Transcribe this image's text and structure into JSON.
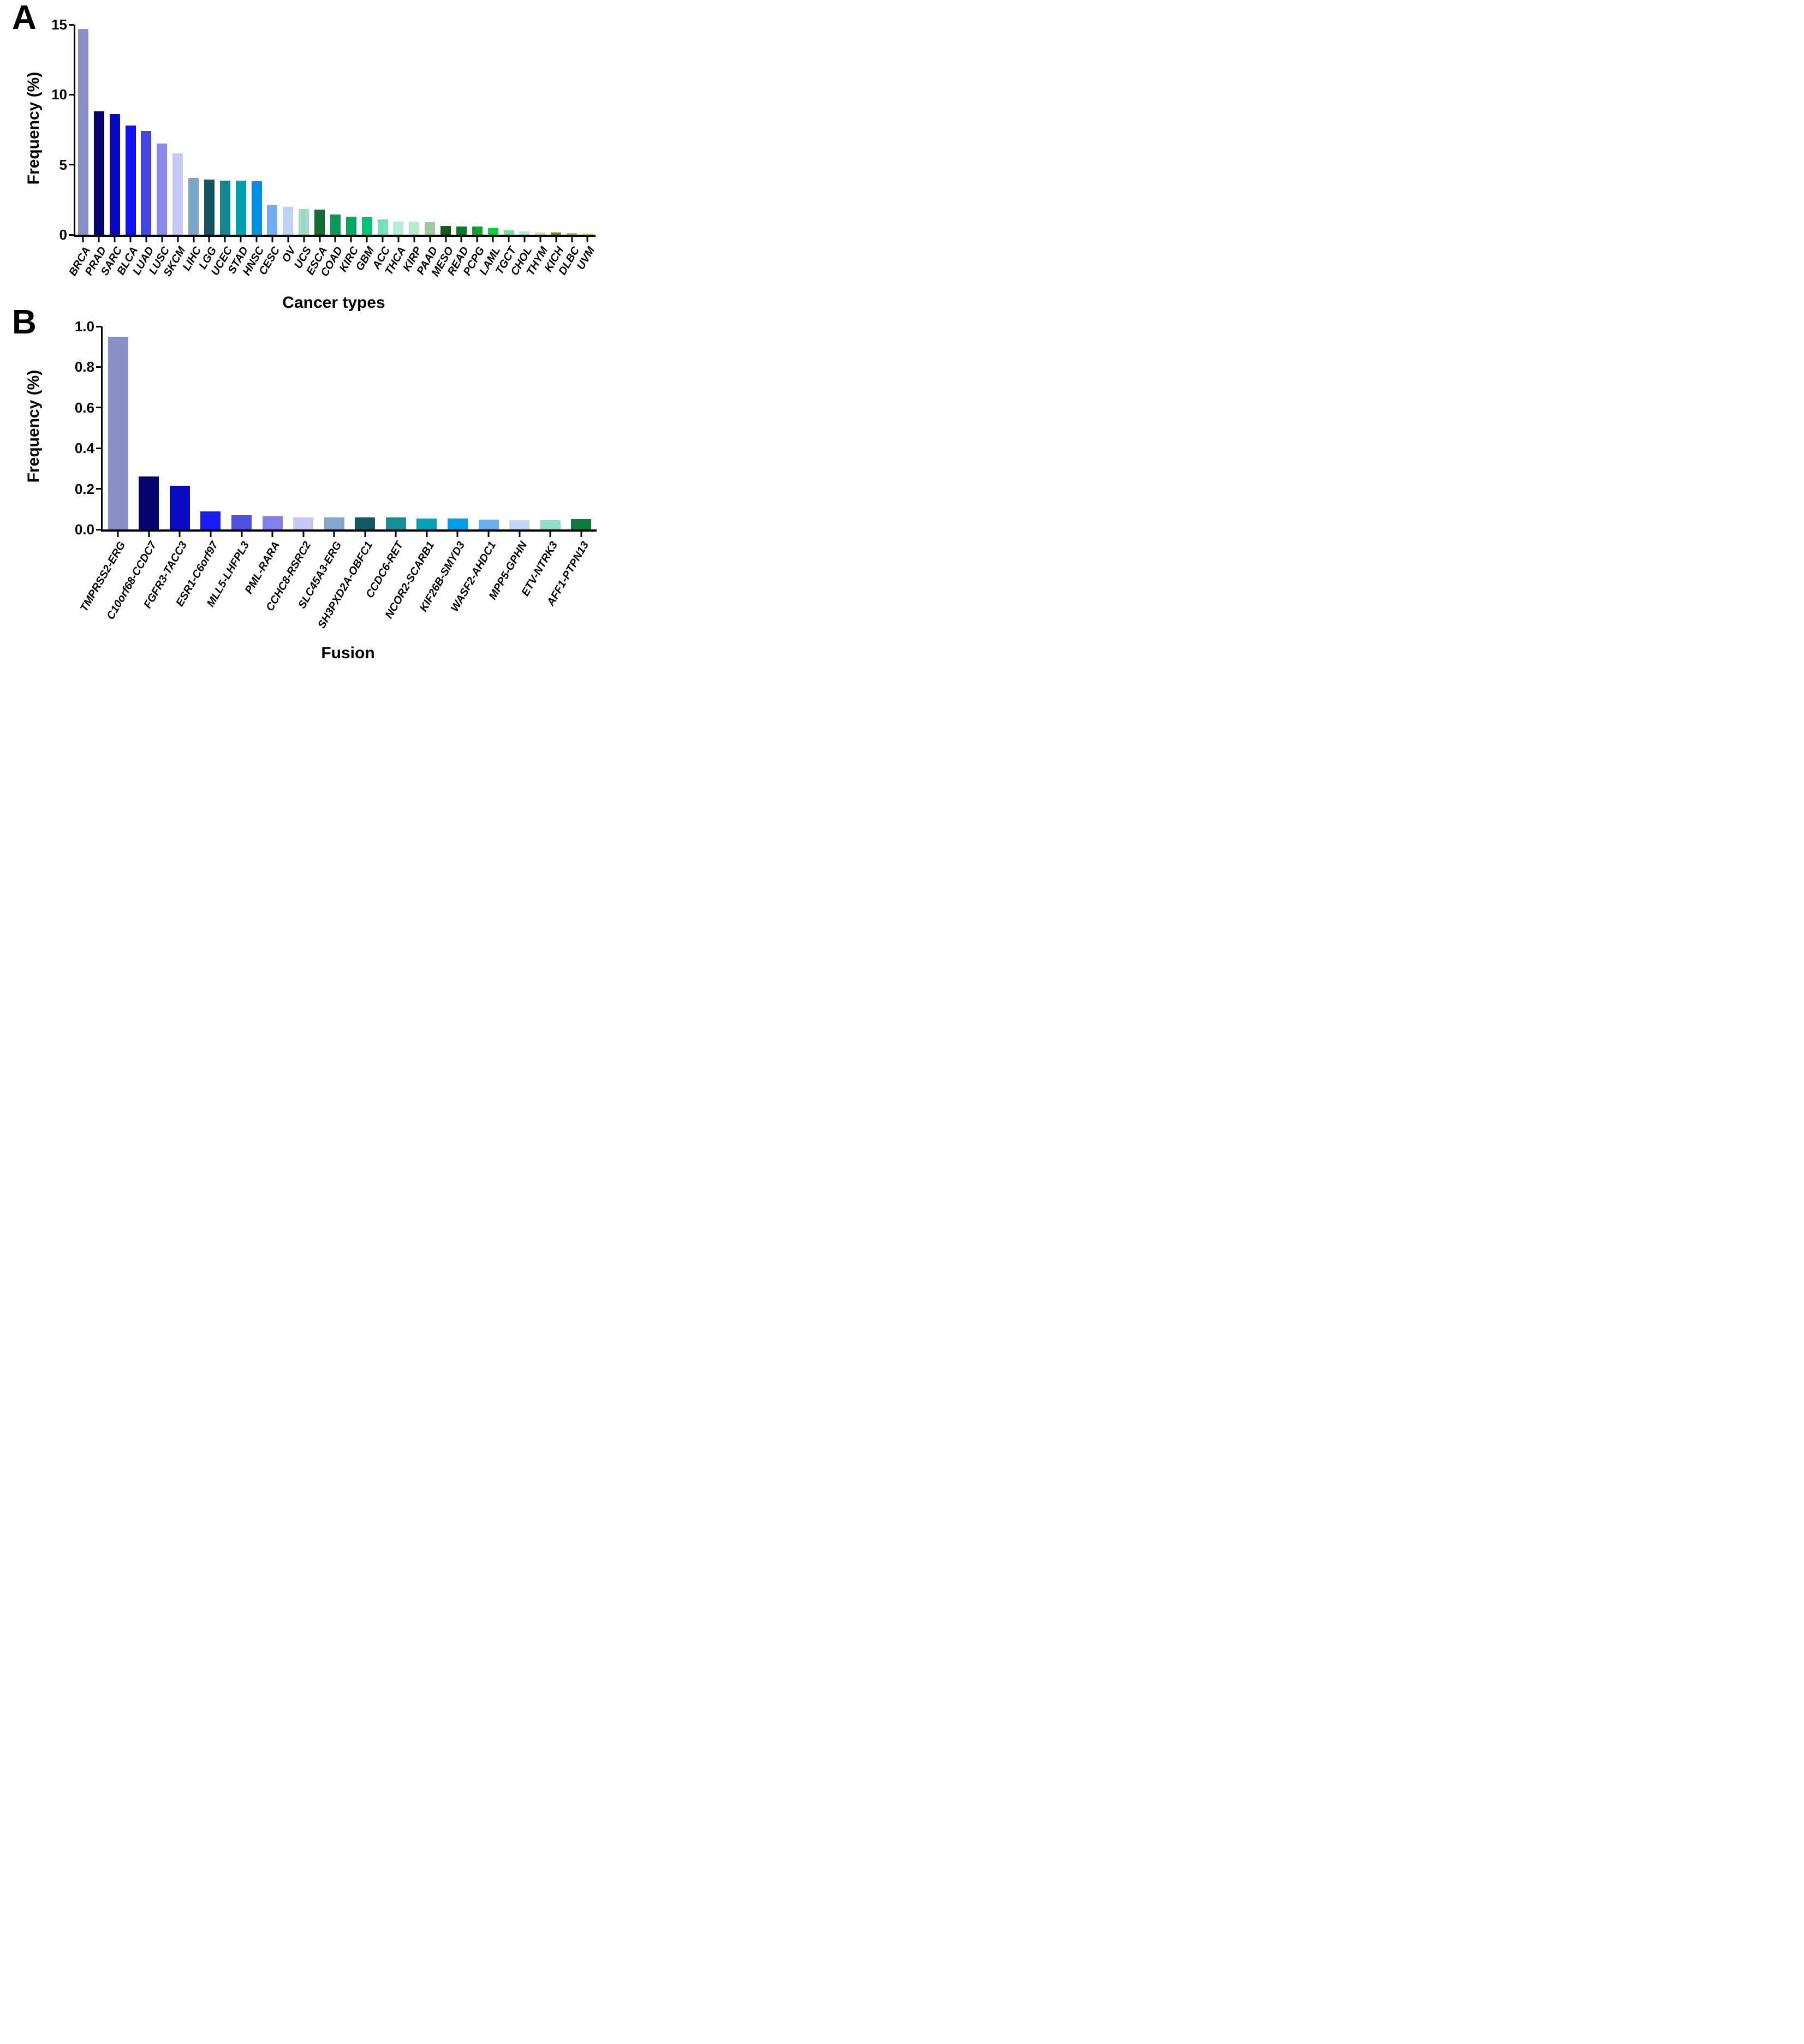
{
  "figure": {
    "background": "#ffffff",
    "axis_color": "#000000"
  },
  "chart_data": [
    {
      "type": "bar",
      "panel_label": "A",
      "title": "",
      "ylabel": "Frequency (%)",
      "xlabel": "Cancer types",
      "ylim": [
        0,
        15
      ],
      "yticks": [
        "0",
        "5",
        "10",
        "15"
      ],
      "grid": false,
      "legend": "none",
      "categories": [
        "BRCA",
        "PRAD",
        "SARC",
        "BLCA",
        "LUAD",
        "LUSC",
        "SKCM",
        "LIHC",
        "LGG",
        "UCEC",
        "STAD",
        "HNSC",
        "CESC",
        "OV",
        "UCS",
        "ESCA",
        "COAD",
        "KIRC",
        "GBM",
        "ACC",
        "THCA",
        "KIRP",
        "PAAD",
        "MESO",
        "READ",
        "PCPG",
        "LAML",
        "TGCT",
        "CHOL",
        "THYM",
        "KICH",
        "DLBC",
        "UVM"
      ],
      "values": [
        14.7,
        8.8,
        8.6,
        7.8,
        7.4,
        6.5,
        5.8,
        4.05,
        3.95,
        3.85,
        3.85,
        3.8,
        2.1,
        2.0,
        1.85,
        1.8,
        1.45,
        1.3,
        1.25,
        1.1,
        0.95,
        0.95,
        0.9,
        0.62,
        0.58,
        0.58,
        0.48,
        0.32,
        0.25,
        0.17,
        0.16,
        0.12,
        0.07
      ],
      "colors": [
        "#8A90C8",
        "#03036B",
        "#0909BE",
        "#1111EE",
        "#4646DE",
        "#8A8AEC",
        "#C8C8F4",
        "#7EA6CC",
        "#17525F",
        "#12858E",
        "#009FAC",
        "#0090E6",
        "#74AAF1",
        "#BCD3F3",
        "#9ED8C3",
        "#146C36",
        "#089A56",
        "#00A663",
        "#00C377",
        "#79DFBE",
        "#B4EBDA",
        "#B7EBC6",
        "#9DCBA4",
        "#16591F",
        "#097A25",
        "#10A22E",
        "#00D439",
        "#68E39C",
        "#AAEFC5",
        "#D8D49A",
        "#7E7E0F",
        "#CAC413",
        "#E6DE10"
      ]
    },
    {
      "type": "bar",
      "panel_label": "B",
      "title": "",
      "ylabel": "Frequency (%)",
      "xlabel": "Fusion",
      "ylim": [
        0,
        1.0
      ],
      "yticks": [
        "0.0",
        "0.2",
        "0.4",
        "0.6",
        "0.8",
        "1.0"
      ],
      "grid": false,
      "legend": "none",
      "categories": [
        "TMPRSS2-ERG",
        "C10orf68-CCDC7",
        "FGFR3-TACC3",
        "ESR1-C6orf97",
        "MLL5-LHFPL3",
        "PML-RARA",
        "CCHC8-RSRC2",
        "SLC45A3-ERG",
        "SH3PXD2A-OBFC1",
        "CCDC6-RET",
        "NCOR2-SCARB1",
        "KIF26B-SMYD3",
        "WASF2-AHDC1",
        "MPP5-GPHN",
        "ETV-NTRK3",
        "AFF1-PTPN13"
      ],
      "values": [
        0.95,
        0.26,
        0.215,
        0.09,
        0.07,
        0.064,
        0.06,
        0.06,
        0.059,
        0.06,
        0.053,
        0.053,
        0.048,
        0.047,
        0.046,
        0.05
      ],
      "colors": [
        "#8A90C8",
        "#03036B",
        "#0B0BC4",
        "#1A1AF2",
        "#5050E0",
        "#8181E9",
        "#C7C7F5",
        "#85A8D1",
        "#155966",
        "#178D97",
        "#00A3B2",
        "#009EE8",
        "#69AEF3",
        "#BFD8F6",
        "#90DDC7",
        "#0F7B40"
      ]
    }
  ]
}
